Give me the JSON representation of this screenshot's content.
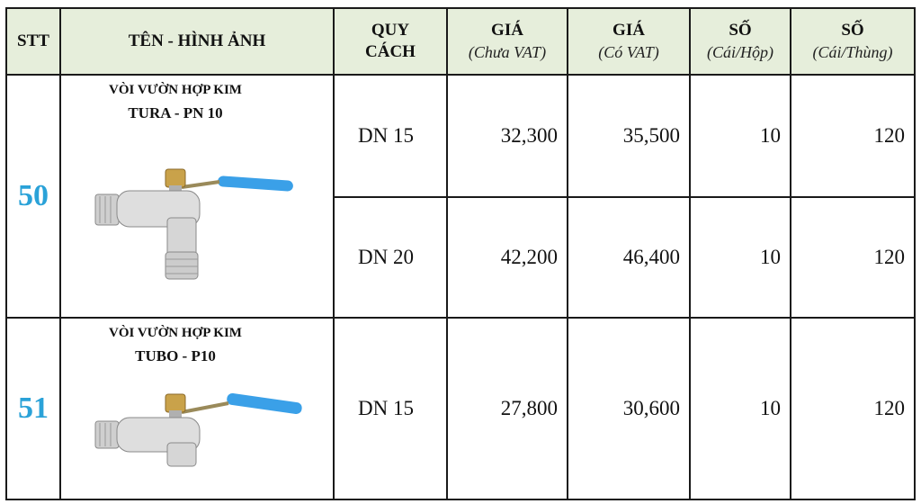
{
  "headers": {
    "stt": "STT",
    "name": "TÊN - HÌNH ẢNH",
    "spec": [
      "QUY",
      "CÁCH"
    ],
    "price_novat": {
      "main": "GIÁ",
      "sub": "(Chưa VAT)"
    },
    "price_vat": {
      "main": "GIÁ",
      "sub": "(Có VAT)"
    },
    "per_box": {
      "main": "SỐ",
      "sub": "(Cái/Hộp)"
    },
    "per_carton": {
      "main": "SỐ",
      "sub": "(Cái/Thùng)"
    }
  },
  "products": [
    {
      "stt": "50",
      "name_line1": "VÒI VƯỜN HỢP KIM",
      "name_line2": "TURA - PN 10",
      "image_icon": "garden-faucet-long-spout-icon",
      "rows": [
        {
          "spec": "DN 15",
          "price_novat": "32,300",
          "price_vat": "35,500",
          "per_box": "10",
          "per_carton": "120"
        },
        {
          "spec": "DN 20",
          "price_novat": "42,200",
          "price_vat": "46,400",
          "per_box": "10",
          "per_carton": "120"
        }
      ]
    },
    {
      "stt": "51",
      "name_line1": "VÒI VƯỜN HỢP KIM",
      "name_line2": "TUBO - P10",
      "image_icon": "garden-faucet-short-spout-icon",
      "rows": [
        {
          "spec": "DN 15",
          "price_novat": "27,800",
          "price_vat": "30,600",
          "per_box": "10",
          "per_carton": "120"
        }
      ]
    }
  ],
  "colors": {
    "header_bg": "#e6eedb",
    "stt_color": "#2aa2d8",
    "handle_blue": "#3aa0e8",
    "border": "#1a1a1a"
  }
}
